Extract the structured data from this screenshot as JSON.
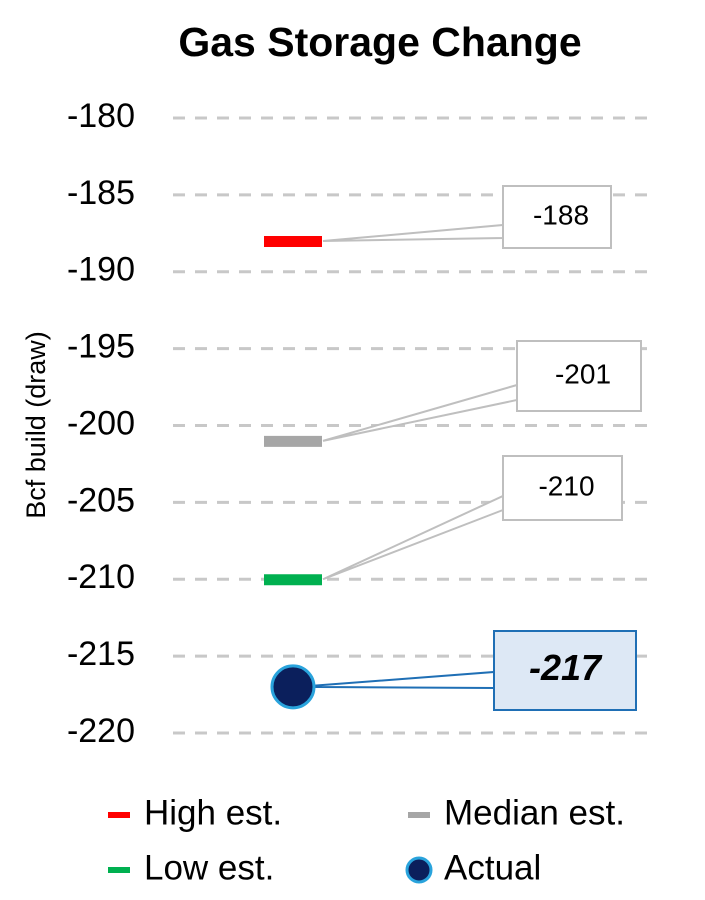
{
  "chart_data": {
    "type": "scatter",
    "title": "Gas Storage Change",
    "y_label": "Bcf build (draw)",
    "ylim": [
      -220,
      -180
    ],
    "yticks": [
      -220,
      -215,
      -210,
      -205,
      -200,
      -195,
      -190,
      -185,
      -180
    ],
    "grid": true,
    "series": [
      {
        "name": "High est.",
        "color": "#ff0000",
        "marker": "dash",
        "values": [
          -188
        ]
      },
      {
        "name": "Median est.",
        "color": "#a6a6a6",
        "marker": "dash",
        "values": [
          -201
        ]
      },
      {
        "name": "Low est.",
        "color": "#00b050",
        "marker": "dash",
        "values": [
          -210
        ]
      },
      {
        "name": "Actual",
        "color": "#0b1f5c",
        "edge_color": "#29a3dc",
        "marker": "circle",
        "values": [
          -217
        ]
      }
    ]
  }
}
